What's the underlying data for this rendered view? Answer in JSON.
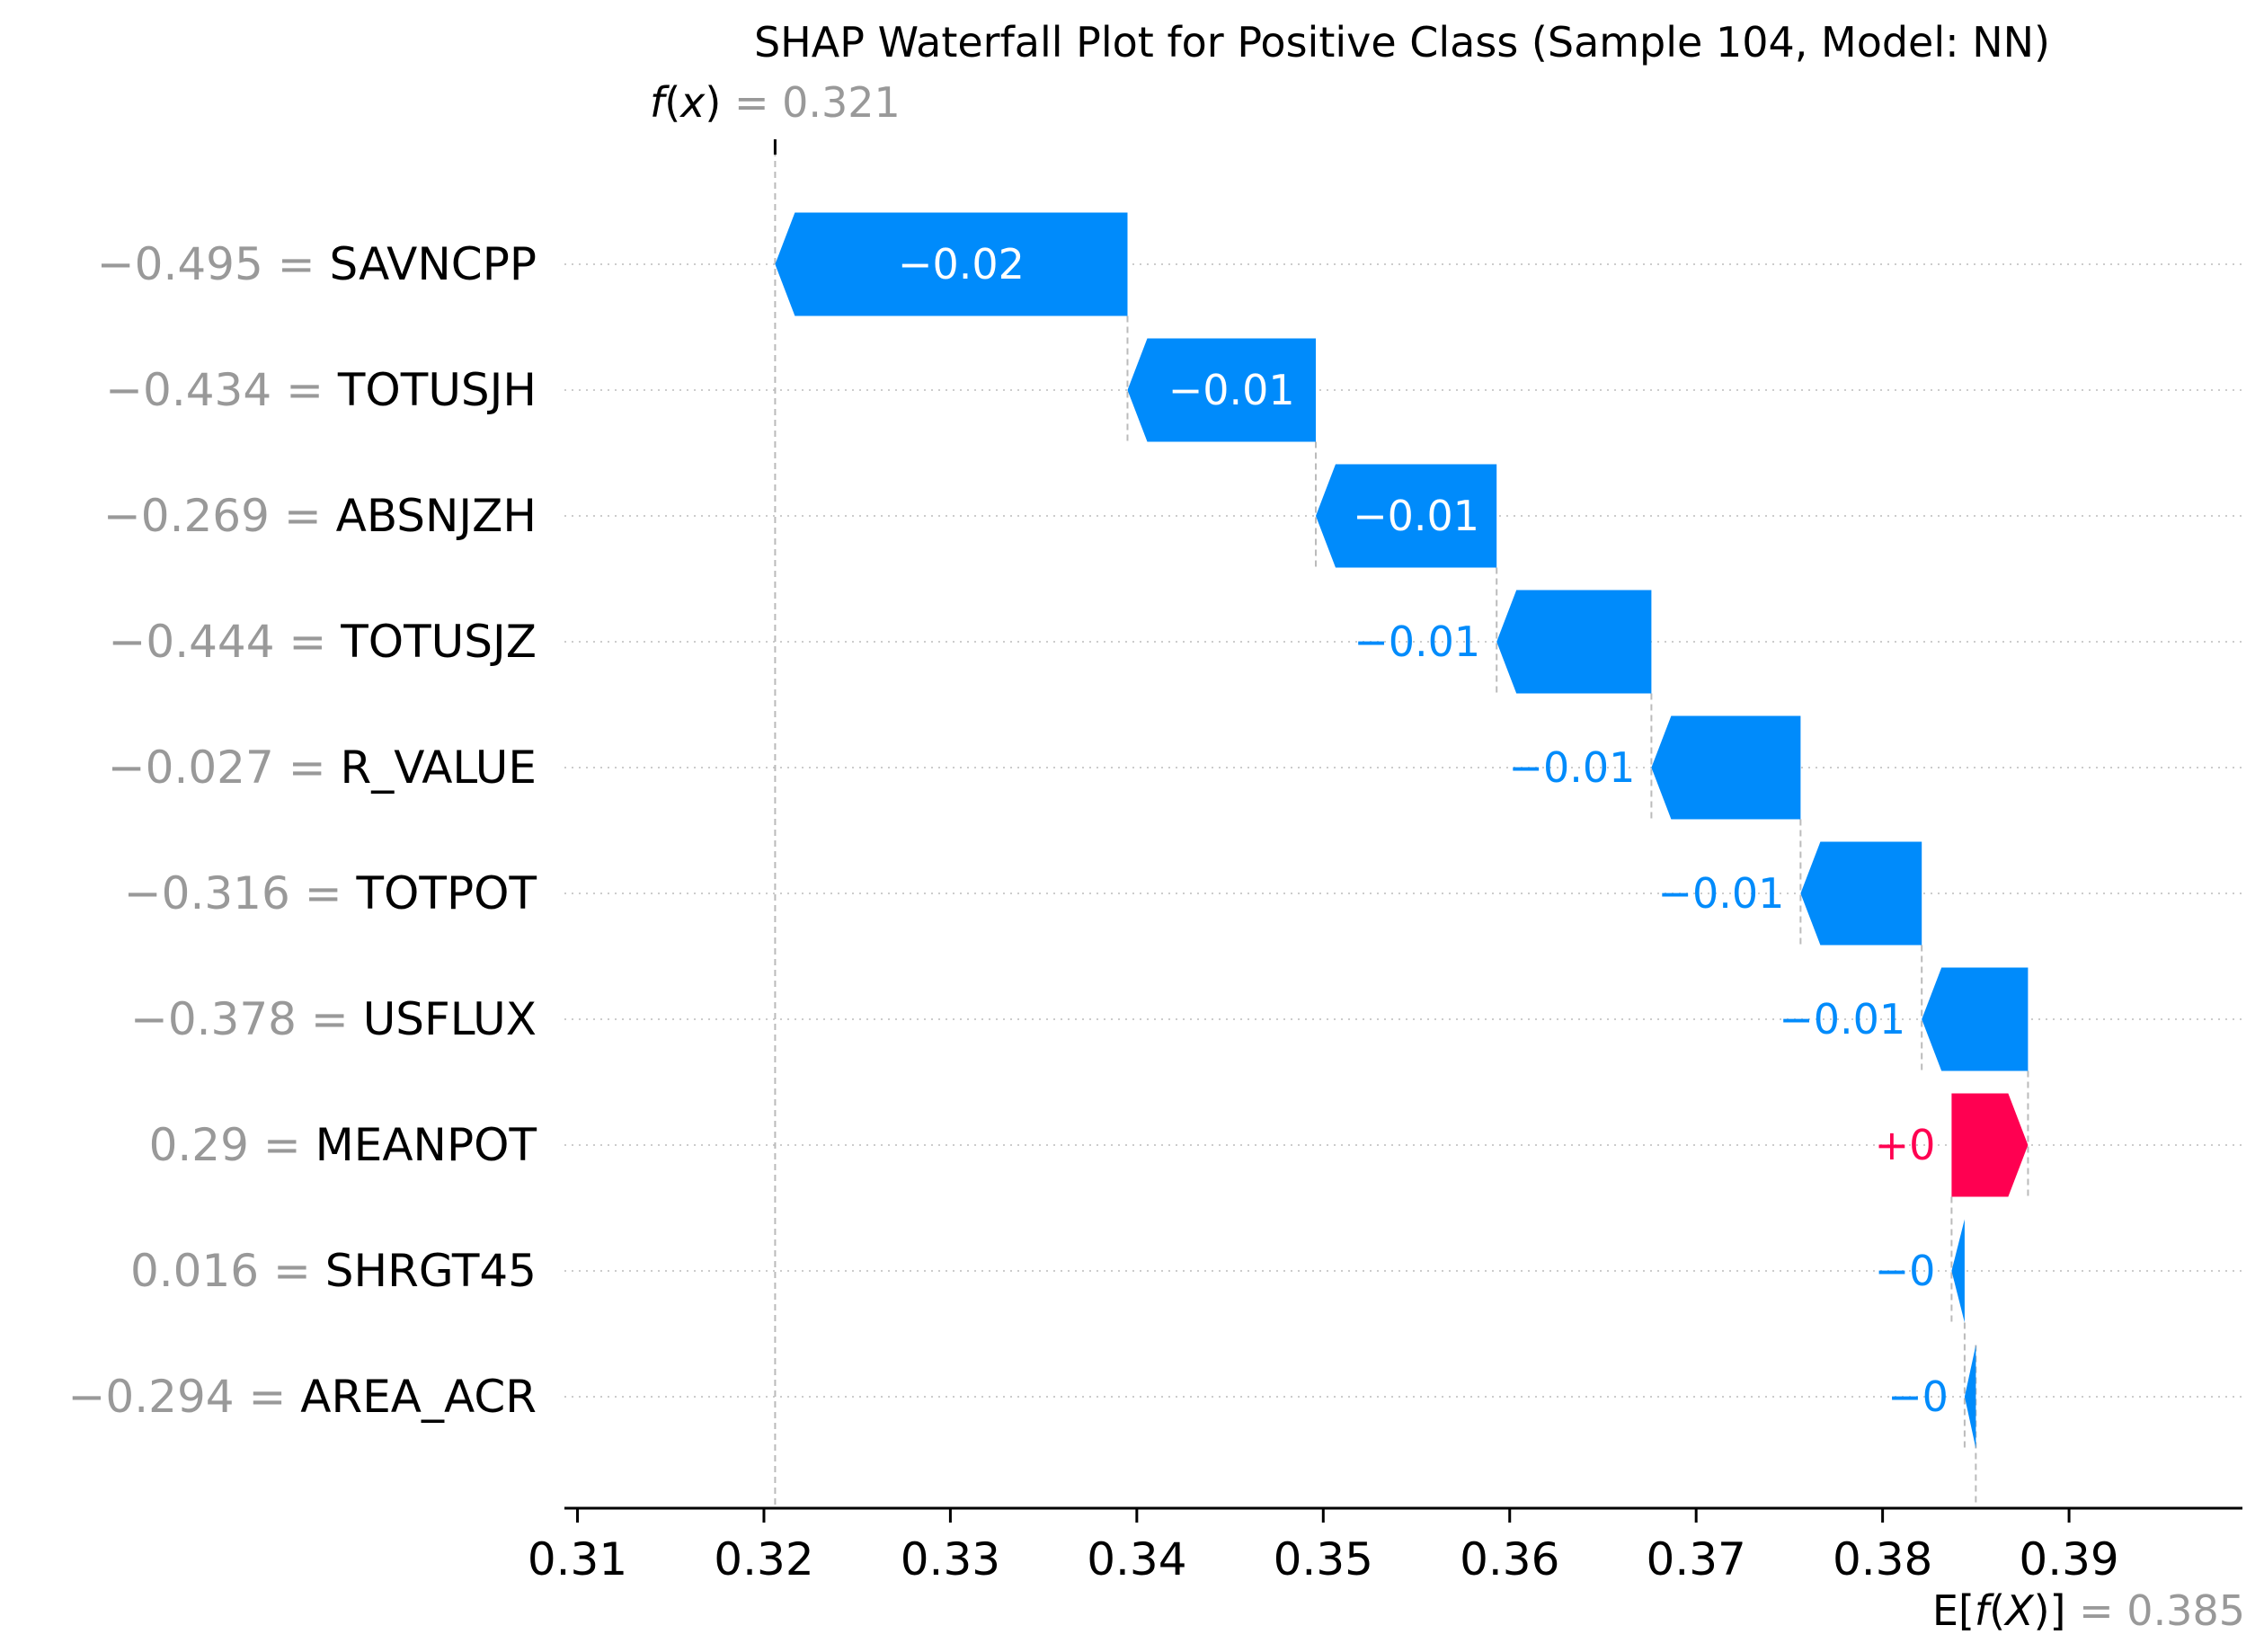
{
  "chart_data": {
    "type": "waterfall",
    "title": "SHAP Waterfall Plot for Positive Class (Sample 104, Model: NN)",
    "fx": {
      "label_func": "f",
      "label_arg": "x",
      "value": "0.321",
      "x": 0.3206
    },
    "efx": {
      "label_prefix": "E[",
      "label_func": "f",
      "label_arg": "X",
      "label_suffix": ")]",
      "value": "0.385",
      "x": 0.385
    },
    "xlim": [
      0.3093,
      0.3993
    ],
    "xticks": [
      0.31,
      0.32,
      0.33,
      0.34,
      0.35,
      0.36,
      0.37,
      0.38,
      0.39
    ],
    "xtick_labels": [
      "0.31",
      "0.32",
      "0.33",
      "0.34",
      "0.35",
      "0.36",
      "0.37",
      "0.38",
      "0.39"
    ],
    "features": [
      {
        "value": "−0.495",
        "name": "SAVNCPP",
        "start": 0.3395,
        "end": 0.3206,
        "label": "−0.02",
        "sign": "neg"
      },
      {
        "value": "−0.434",
        "name": "TOTUSJH",
        "start": 0.3496,
        "end": 0.3395,
        "label": "−0.01",
        "sign": "neg"
      },
      {
        "value": "−0.269",
        "name": "ABSNJZH",
        "start": 0.3593,
        "end": 0.3496,
        "label": "−0.01",
        "sign": "neg"
      },
      {
        "value": "−0.444",
        "name": "TOTUSJZ",
        "start": 0.3676,
        "end": 0.3593,
        "label": "−0.01",
        "sign": "neg"
      },
      {
        "value": "−0.027",
        "name": "R_VALUE",
        "start": 0.3756,
        "end": 0.3676,
        "label": "−0.01",
        "sign": "neg"
      },
      {
        "value": "−0.316",
        "name": "TOTPOT",
        "start": 0.3821,
        "end": 0.3756,
        "label": "−0.01",
        "sign": "neg"
      },
      {
        "value": "−0.378",
        "name": "USFLUX",
        "start": 0.3878,
        "end": 0.3821,
        "label": "−0.01",
        "sign": "neg"
      },
      {
        "value": "0.29",
        "name": "MEANPOT",
        "start": 0.3837,
        "end": 0.3878,
        "label": "+0",
        "sign": "pos"
      },
      {
        "value": "0.016",
        "name": "SHRGT45",
        "start": 0.3844,
        "end": 0.3837,
        "label": "−0",
        "sign": "neg"
      },
      {
        "value": "−0.294",
        "name": "AREA_ACR",
        "start": 0.385,
        "end": 0.3844,
        "label": "−0",
        "sign": "neg"
      }
    ],
    "colors": {
      "negative": "#008bfb",
      "positive": "#ff0051",
      "value_gray": "#999999",
      "text": "#000000",
      "gridline": "#cccccc",
      "dashed": "#bbbbbb"
    }
  }
}
